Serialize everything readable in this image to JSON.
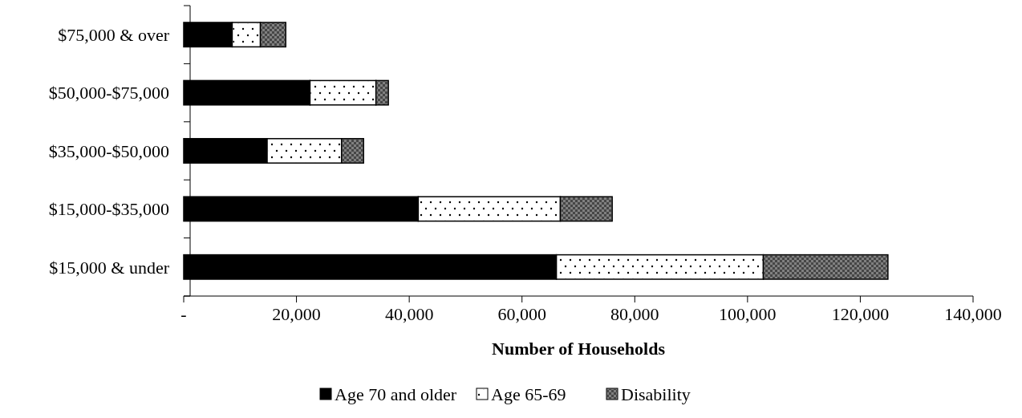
{
  "chart_data": {
    "type": "bar",
    "orientation": "horizontal",
    "stacked": true,
    "xlabel": "Number of Households",
    "categories": [
      "$75,000 & over",
      "$50,000-$75,000",
      "$35,000-$50,000",
      "$15,000-$35,000",
      "$15,000 & under"
    ],
    "series": [
      {
        "name": "Age 70 and older",
        "color": "#000000",
        "values": [
          8600,
          22400,
          14800,
          41600,
          66100
        ]
      },
      {
        "name": "Age 65-69",
        "color": "#ffffff",
        "values": [
          5000,
          11700,
          13200,
          25200,
          36700
        ]
      },
      {
        "name": "Disability",
        "color": "#808080",
        "values": [
          4500,
          2200,
          3900,
          9200,
          22100
        ]
      }
    ],
    "xlim": [
      0,
      140000
    ],
    "xticks": [
      {
        "value": 0,
        "label": "-"
      },
      {
        "value": 20000,
        "label": "20,000"
      },
      {
        "value": 40000,
        "label": "40,000"
      },
      {
        "value": 60000,
        "label": "60,000"
      },
      {
        "value": 80000,
        "label": "80,000"
      },
      {
        "value": 100000,
        "label": "100,000"
      },
      {
        "value": 120000,
        "label": "120,000"
      },
      {
        "value": 140000,
        "label": "140,000"
      }
    ],
    "grid": false,
    "legend": "bottom"
  }
}
